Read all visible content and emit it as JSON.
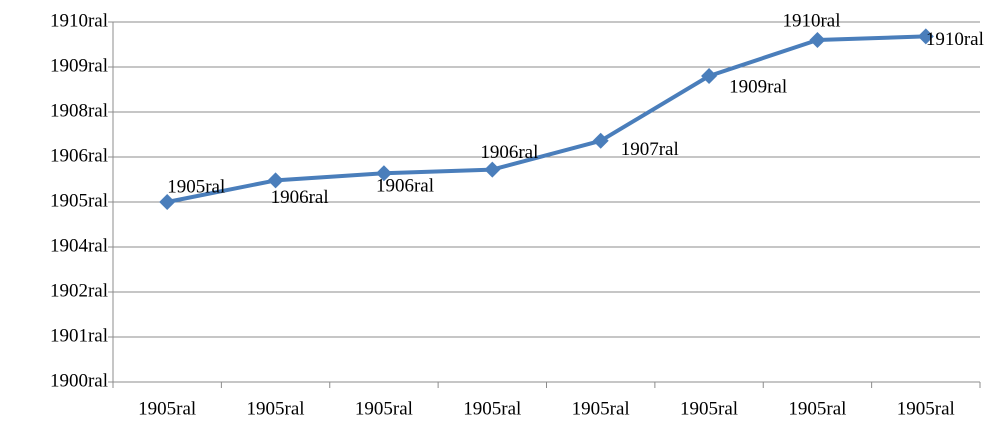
{
  "chart_data": {
    "type": "line",
    "categories": [
      "1905ral",
      "1905ral",
      "1905ral",
      "1905ral",
      "1905ral",
      "1905ral",
      "1905ral",
      "1905ral"
    ],
    "series": [
      {
        "color": "#4a7ebb",
        "values": [
          1905,
          1905.6,
          1905.8,
          1905.9,
          1906.7,
          1908.5,
          1909.5,
          1909.6
        ],
        "value_labels": [
          "1905ral",
          "1906ral",
          "1906ral",
          "1906ral",
          "1907ral",
          "1909ral",
          "1910ral",
          "1910ral"
        ]
      }
    ],
    "ylim": [
      1900,
      1910
    ],
    "yticks": [
      {
        "value": 1900,
        "label": "1900ral"
      },
      {
        "value": 1901.25,
        "label": "1901ral"
      },
      {
        "value": 1902.5,
        "label": "1902ral"
      },
      {
        "value": 1903.75,
        "label": "1904ral"
      },
      {
        "value": 1905,
        "label": "1905ral"
      },
      {
        "value": 1906.25,
        "label": "1906ral"
      },
      {
        "value": 1907.5,
        "label": "1908ral"
      },
      {
        "value": 1908.75,
        "label": "1909ral"
      },
      {
        "value": 1910,
        "label": "1910ral"
      }
    ],
    "grid": true
  }
}
